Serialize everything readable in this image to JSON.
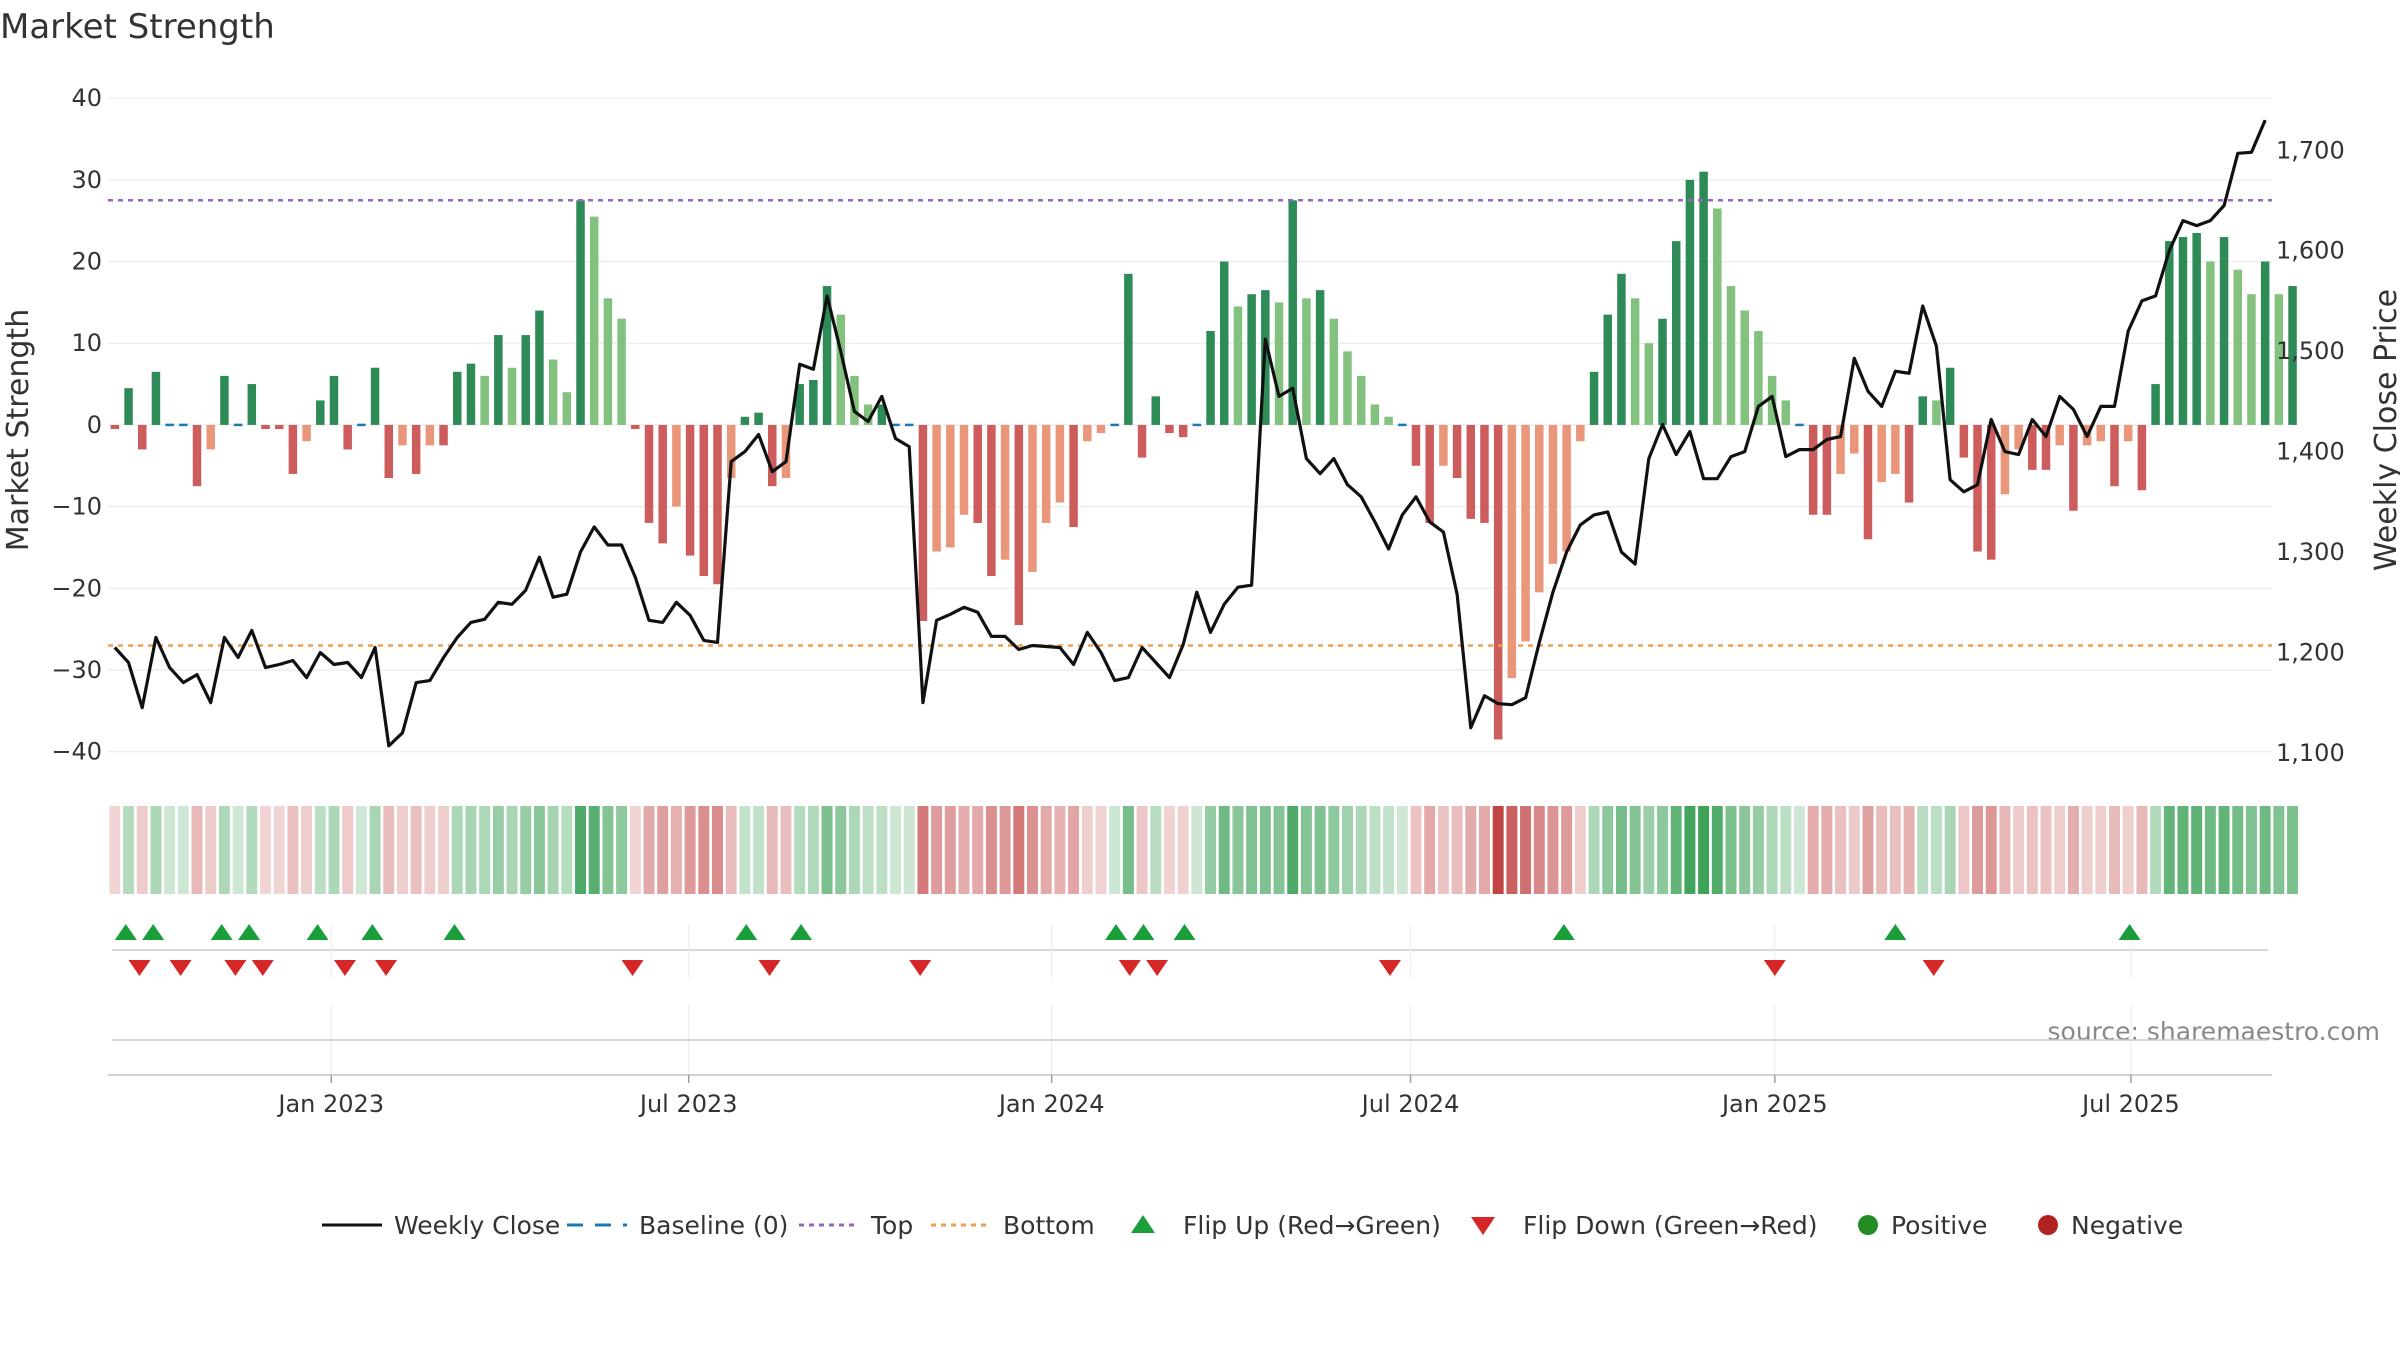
{
  "chart_data": {
    "type": "bar",
    "title": "Market Strength",
    "ylabel": "Market Strength",
    "y2label": "Weekly Close Price",
    "ylim": [
      -42,
      41
    ],
    "y2lim": [
      1085,
      1760
    ],
    "yticks": [
      -40,
      -30,
      -20,
      -10,
      0,
      10,
      20,
      30,
      40
    ],
    "y2ticks": [
      1100,
      1200,
      1300,
      1400,
      1500,
      1600,
      1700
    ],
    "y2tick_labels": [
      "1,100",
      "1,200",
      "1,300",
      "1,400",
      "1,500",
      "1,600",
      "1,700"
    ],
    "x_range_weeks": [
      0,
      158
    ],
    "xticks": [
      {
        "label": "Jan 2023",
        "week": 16.3
      },
      {
        "label": "Jul 2023",
        "week": 42.4
      },
      {
        "label": "Jan 2024",
        "week": 68.9
      },
      {
        "label": "Jul 2024",
        "week": 95.1
      },
      {
        "label": "Jan 2025",
        "week": 121.7
      },
      {
        "label": "Jul 2025",
        "week": 147.7
      }
    ],
    "top_line": 27.5,
    "bottom_line": -27,
    "baseline": 0,
    "strength": [
      -0.5,
      4.5,
      -3,
      6.5,
      0,
      0,
      -7.5,
      -3,
      6,
      0,
      5,
      -0.5,
      -0.5,
      -6,
      -2,
      3,
      6,
      -3,
      0,
      7,
      -6.5,
      -2.5,
      -6,
      -2.5,
      -2.5,
      6.5,
      7.5,
      6,
      11,
      7,
      11,
      14,
      8,
      4,
      27.5,
      25.5,
      15.5,
      13,
      -0.5,
      -12,
      -14.5,
      -10,
      -16,
      -18.5,
      -19.5,
      -6.5,
      1,
      1.5,
      -7.5,
      -6.5,
      5,
      5.5,
      17,
      13.5,
      6,
      2.5,
      2.5,
      0,
      0,
      -24,
      -15.5,
      -15,
      -11,
      -12,
      -18.5,
      -16.5,
      -24.5,
      -18,
      -12,
      -9.5,
      -12.5,
      -2,
      -1,
      0,
      18.5,
      -4,
      3.5,
      -1,
      -1.5,
      0,
      11.5,
      20,
      14.5,
      16,
      16.5,
      15,
      27.5,
      15.5,
      16.5,
      13,
      9,
      6,
      2.5,
      1,
      0,
      -5,
      -12,
      -5,
      -6.5,
      -11.5,
      -12,
      -38.5,
      -31,
      -26.5,
      -20.5,
      -17,
      -15.5,
      -2,
      6.5,
      13.5,
      18.5,
      15.5,
      10,
      13,
      22.5,
      30,
      31,
      26.5,
      17,
      14,
      11.5,
      6,
      3,
      0,
      -11,
      -11,
      -6,
      -3.5,
      -14,
      -7,
      -6,
      -9.5,
      3.5,
      3,
      7,
      -4,
      -15.5,
      -16.5,
      -8.5,
      -3,
      -5.5,
      -5.5,
      -2.5,
      -10.5,
      -2.5,
      -2,
      -7.5,
      -2,
      -8,
      5,
      22.5,
      23,
      23.5,
      20,
      23,
      19,
      16,
      20,
      16,
      17
    ],
    "weekly_close": [
      1205,
      1190,
      1145,
      1215,
      1185,
      1170,
      1178,
      1150,
      1215,
      1195,
      1222,
      1185,
      1188,
      1192,
      1175,
      1200,
      1188,
      1190,
      1175,
      1205,
      1107,
      1120,
      1170,
      1172,
      1195,
      1215,
      1230,
      1233,
      1250,
      1248,
      1262,
      1295,
      1255,
      1258,
      1300,
      1325,
      1307,
      1307,
      1275,
      1232,
      1230,
      1250,
      1237,
      1212,
      1210,
      1390,
      1400,
      1417,
      1380,
      1390,
      1487,
      1482,
      1555,
      1500,
      1440,
      1430,
      1455,
      1413,
      1405,
      1150,
      1232,
      1238,
      1245,
      1240,
      1216,
      1216,
      1203,
      1207,
      1206,
      1205,
      1188,
      1220,
      1200,
      1172,
      1175,
      1205,
      1190,
      1175,
      1208,
      1260,
      1220,
      1248,
      1265,
      1267,
      1512,
      1455,
      1463,
      1393,
      1378,
      1393,
      1367,
      1355,
      1330,
      1303,
      1337,
      1355,
      1330,
      1320,
      1258,
      1125,
      1157,
      1149,
      1148,
      1155,
      1210,
      1260,
      1300,
      1327,
      1337,
      1340,
      1300,
      1288,
      1393,
      1427,
      1397,
      1420,
      1373,
      1373,
      1395,
      1400,
      1445,
      1455,
      1395,
      1402,
      1402,
      1412,
      1415,
      1493,
      1460,
      1445,
      1480,
      1478,
      1545,
      1505,
      1372,
      1360,
      1367,
      1432,
      1400,
      1397,
      1432,
      1415,
      1455,
      1442,
      1415,
      1445,
      1445,
      1520,
      1550,
      1555,
      1600,
      1630,
      1625,
      1630,
      1645,
      1697,
      1698,
      1730
    ],
    "flip_up_weeks": [
      1.3,
      3.3,
      8.3,
      10.3,
      15.3,
      19.3,
      25.3,
      46.6,
      50.6,
      73.6,
      75.6,
      78.6,
      106.3,
      130.5,
      147.6
    ],
    "flip_down_weeks": [
      2.3,
      5.3,
      9.3,
      11.3,
      17.3,
      20.3,
      38.3,
      48.3,
      59.3,
      74.6,
      76.6,
      93.6,
      121.7,
      133.3
    ],
    "legend": [
      {
        "key": "weekly_close",
        "label": "Weekly Close"
      },
      {
        "key": "baseline",
        "label": "Baseline (0)"
      },
      {
        "key": "top",
        "label": "Top"
      },
      {
        "key": "bottom",
        "label": "Bottom"
      },
      {
        "key": "flip_up",
        "label": "Flip Up (Red→Green)"
      },
      {
        "key": "flip_down",
        "label": "Flip Down (Green→Red)"
      },
      {
        "key": "positive",
        "label": "Positive"
      },
      {
        "key": "negative",
        "label": "Negative"
      }
    ],
    "source": "source: sharemaestro.com"
  },
  "colors": {
    "strong_green": "#2e8b57",
    "light_green": "#82c17e",
    "strong_red": "#cd5c5c",
    "light_red": "#e9967a",
    "price_line": "#111111",
    "baseline": "#1f77b4",
    "top": "#9467bd",
    "bottom": "#f0a050",
    "flip_up": "#1a9e3a",
    "flip_down": "#d62728",
    "positive": "#228b22",
    "negative": "#b22222",
    "grid": "#ebebeb",
    "source": "#888888"
  }
}
